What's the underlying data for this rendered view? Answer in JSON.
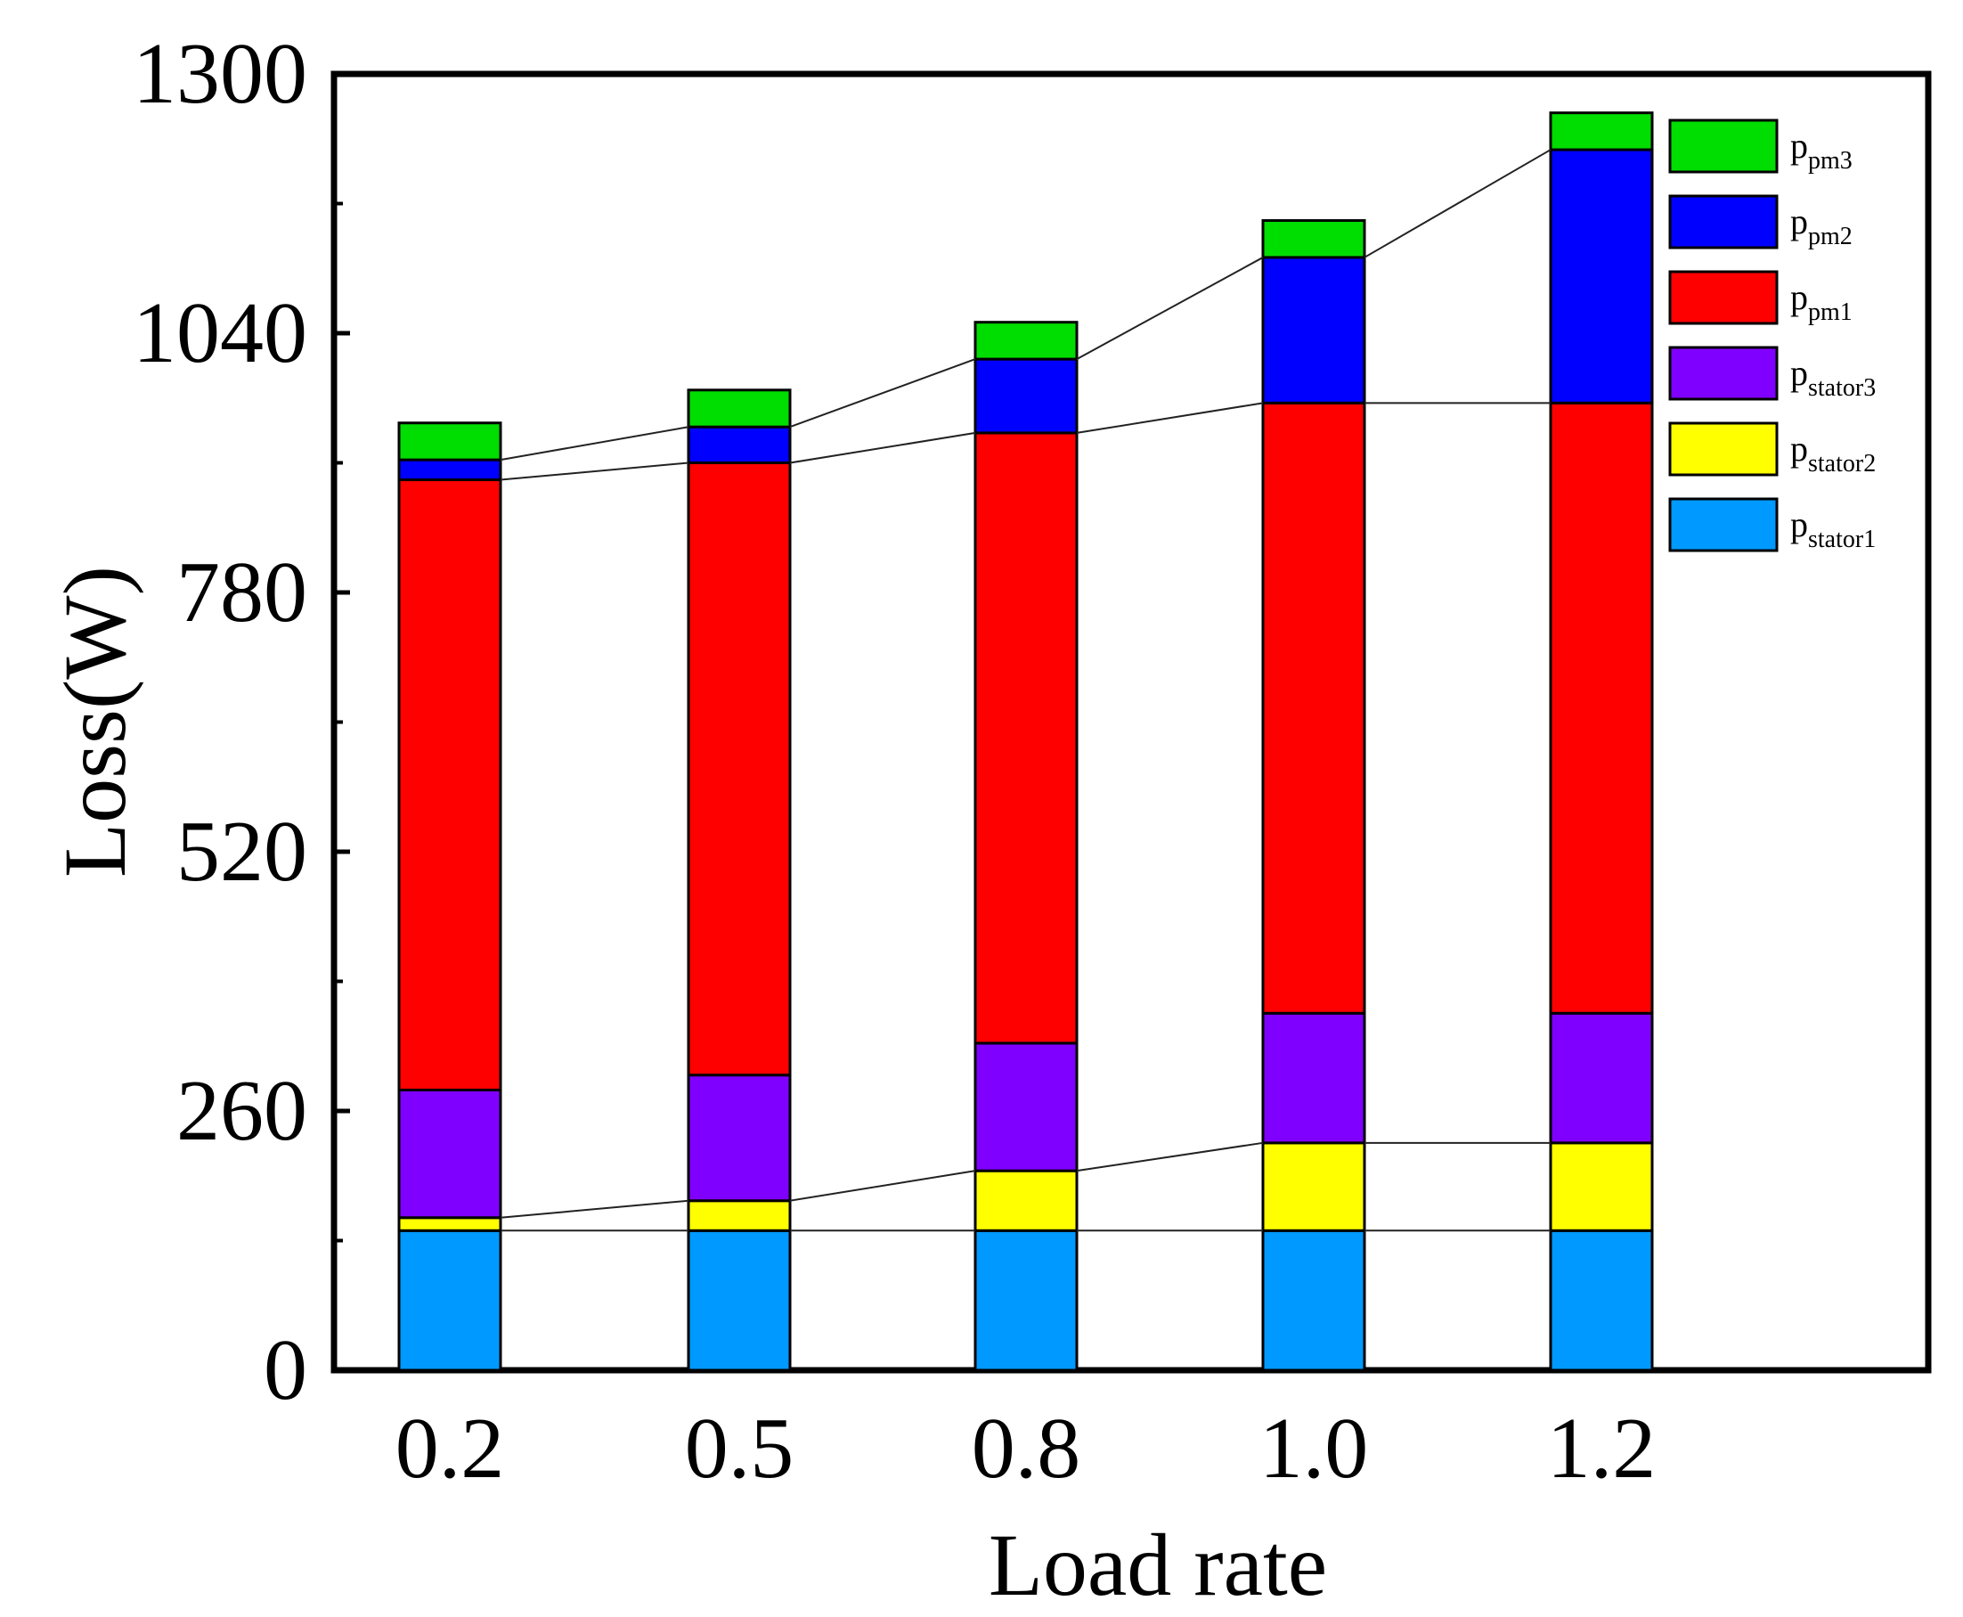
{
  "chart_data": {
    "type": "bar",
    "stacked": true,
    "categories": [
      "0.2",
      "0.5",
      "0.8",
      "1.0",
      "1.2"
    ],
    "xlabel": "Load rate",
    "ylabel": "Loss(W)",
    "ylim": [
      0,
      1300
    ],
    "yticks": [
      "0",
      "260",
      "520",
      "780",
      "1040",
      "1300"
    ],
    "series": [
      {
        "name": "stator1",
        "base": "p",
        "sub": "stator1",
        "color": "#0099ff",
        "values": [
          140,
          140,
          140,
          140,
          140
        ]
      },
      {
        "name": "stator2",
        "base": "p",
        "sub": "stator2",
        "color": "#ffff00",
        "values": [
          13,
          30,
          60,
          88,
          88
        ]
      },
      {
        "name": "stator3",
        "base": "p",
        "sub": "stator3",
        "color": "#8000ff",
        "values": [
          128,
          126,
          128,
          130,
          130
        ]
      },
      {
        "name": "pm1",
        "base": "p",
        "sub": "pm1",
        "color": "#ff0000",
        "values": [
          612,
          614,
          612,
          612,
          612
        ]
      },
      {
        "name": "pm2",
        "base": "p",
        "sub": "pm2",
        "color": "#0000ff",
        "values": [
          20,
          36,
          74,
          146,
          254
        ]
      },
      {
        "name": "pm3",
        "base": "p",
        "sub": "pm3",
        "color": "#00dd00",
        "values": [
          37,
          37,
          37,
          37,
          37
        ]
      }
    ],
    "legend_position": "top-right",
    "connector_lines": true
  }
}
